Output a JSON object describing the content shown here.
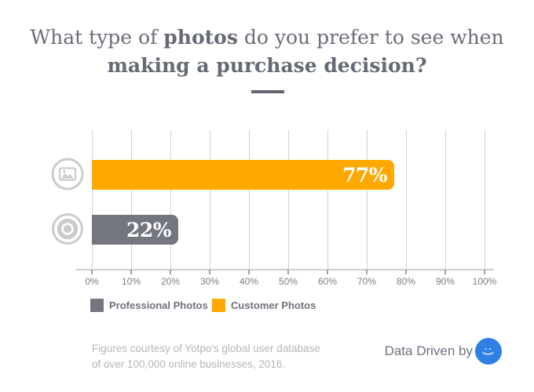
{
  "title": {
    "line1_prefix": "What type of ",
    "line1_bold": "photos",
    "line1_suffix": " do you prefer to see when",
    "line2": "making a purchase decision?"
  },
  "chart_data": {
    "type": "bar",
    "orientation": "horizontal",
    "bars": [
      {
        "label": "Customer Photos",
        "value": 77,
        "display": "77%",
        "color": "#ffa800",
        "icon": "photo-image-icon"
      },
      {
        "label": "Professional Photos",
        "value": 22,
        "display": "22%",
        "color": "#73767e",
        "icon": "camera-lens-icon"
      }
    ],
    "x_axis": {
      "min": 0,
      "max": 100,
      "tick_labels": [
        "0%",
        "10%",
        "20%",
        "30%",
        "40%",
        "50%",
        "60%",
        "70%",
        "80%",
        "90%",
        "100%"
      ]
    },
    "legend": [
      {
        "label": "Professional Photos",
        "color": "#73767e"
      },
      {
        "label": "Customer Photos",
        "color": "#ffa800"
      }
    ],
    "grid": true,
    "legend_position": "bottom-left",
    "title": "What type of photos do you prefer to see when making a purchase decision?"
  },
  "footer": {
    "attribution_line1": "Figures courtesy of Yotpo's global user database",
    "attribution_line2": "of over 100,000 online businesses, 2016.",
    "credit_text": "Data Driven by",
    "logo_name": "yotpo-logo",
    "logo_face": ":)"
  },
  "colors": {
    "accent_orange": "#ffa800",
    "bar_gray": "#73767e",
    "title_gray": "#6b6e78",
    "gridline": "#cfd1d4",
    "icon_gray": "#c9cbce",
    "logo_blue": "#2f80e4"
  }
}
